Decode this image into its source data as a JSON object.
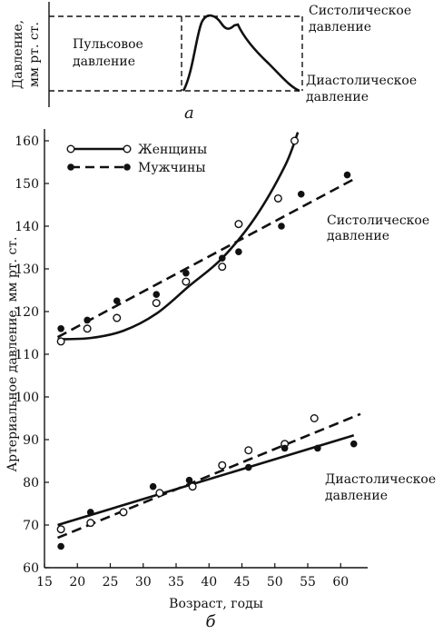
{
  "panel_a": {
    "panel_label": "а",
    "ylabel_line1": "Давление,",
    "ylabel_line2": "мм рт. ст.",
    "pulse_label_line1": "Пульсовое",
    "pulse_label_line2": "давление",
    "systolic_label_line1": "Систолическое",
    "systolic_label_line2": "давление",
    "diastolic_label_line1": "Диастолическое",
    "diastolic_label_line2": "давление"
  },
  "panel_b": {
    "panel_label": "б",
    "ylabel": "Артериальное давление, мм рт. ст.",
    "xlabel": "Возраст, годы",
    "legend": [
      "Женщины",
      "Мужчины"
    ],
    "group_labels": {
      "systolic_line1": "Систолическое",
      "systolic_line2": "давление",
      "diastolic_line1": "Диастолическое",
      "diastolic_line2": "давление"
    },
    "xticks": [
      "15",
      "20",
      "25",
      "30",
      "35",
      "40",
      "45",
      "50",
      "55",
      "60"
    ],
    "yticks": [
      "60",
      "70",
      "80",
      "90",
      "100",
      "110",
      "120",
      "130",
      "140",
      "150",
      "160"
    ]
  },
  "chart_data": [
    {
      "type": "line",
      "title": "",
      "ylabel": "Давление, мм рт. ст.",
      "description_markers": [
        "Систолическое давление",
        "Диастолическое давление",
        "Пульсовое давление"
      ],
      "grid": false
    },
    {
      "type": "scatter",
      "xlabel": "Возраст, годы",
      "ylabel": "Артериальное давление, мм рт. ст.",
      "xlim": [
        15,
        63
      ],
      "ylim": [
        60,
        162
      ],
      "grid": false,
      "legend_position": "top-left",
      "series": [
        {
          "name": "Женщины",
          "group": "Систолическое давление",
          "marker": "open-circle",
          "line": "solid",
          "x": [
            17.5,
            21.5,
            26,
            32,
            36.5,
            42,
            44.5,
            50.5,
            53
          ],
          "y": [
            113,
            116,
            118.5,
            122,
            127,
            130.5,
            140.5,
            146.5,
            160
          ],
          "fit_line": [
            [
              17,
              113.5
            ],
            [
              22,
              113.8
            ],
            [
              27,
              115.5
            ],
            [
              32,
              119.5
            ],
            [
              37,
              126
            ],
            [
              42,
              132.5
            ],
            [
              47,
              142
            ],
            [
              51.5,
              154
            ],
            [
              53.5,
              162
            ]
          ]
        },
        {
          "name": "Мужчины",
          "group": "Систолическое давление",
          "marker": "filled-circle",
          "line": "dashed",
          "x": [
            17.5,
            21.5,
            26,
            32,
            36.5,
            42,
            44.5,
            51,
            54,
            61
          ],
          "y": [
            116,
            118,
            122.5,
            124,
            129,
            132.5,
            134,
            140,
            147.5,
            152
          ],
          "fit_line": [
            [
              17,
              114
            ],
            [
              62,
              151
            ]
          ]
        },
        {
          "name": "Женщины",
          "group": "Диастолическое давление",
          "marker": "open-circle",
          "line": "solid",
          "x": [
            17.5,
            22,
            27,
            32.5,
            37.5,
            42,
            46,
            51.5,
            56
          ],
          "y": [
            69,
            70.5,
            73,
            77.5,
            79,
            84,
            87.5,
            89,
            95
          ],
          "fit_line": [
            [
              17,
              70
            ],
            [
              62,
              91
            ]
          ]
        },
        {
          "name": "Мужчины",
          "group": "Диастолическое давление",
          "marker": "filled-circle",
          "line": "dashed",
          "x": [
            17.5,
            22,
            31.5,
            37,
            46,
            51.5,
            56.5,
            62
          ],
          "y": [
            65,
            73,
            79,
            80.5,
            83.5,
            88,
            88,
            89
          ],
          "fit_line": [
            [
              17,
              67
            ],
            [
              63,
              96
            ]
          ]
        }
      ]
    }
  ]
}
